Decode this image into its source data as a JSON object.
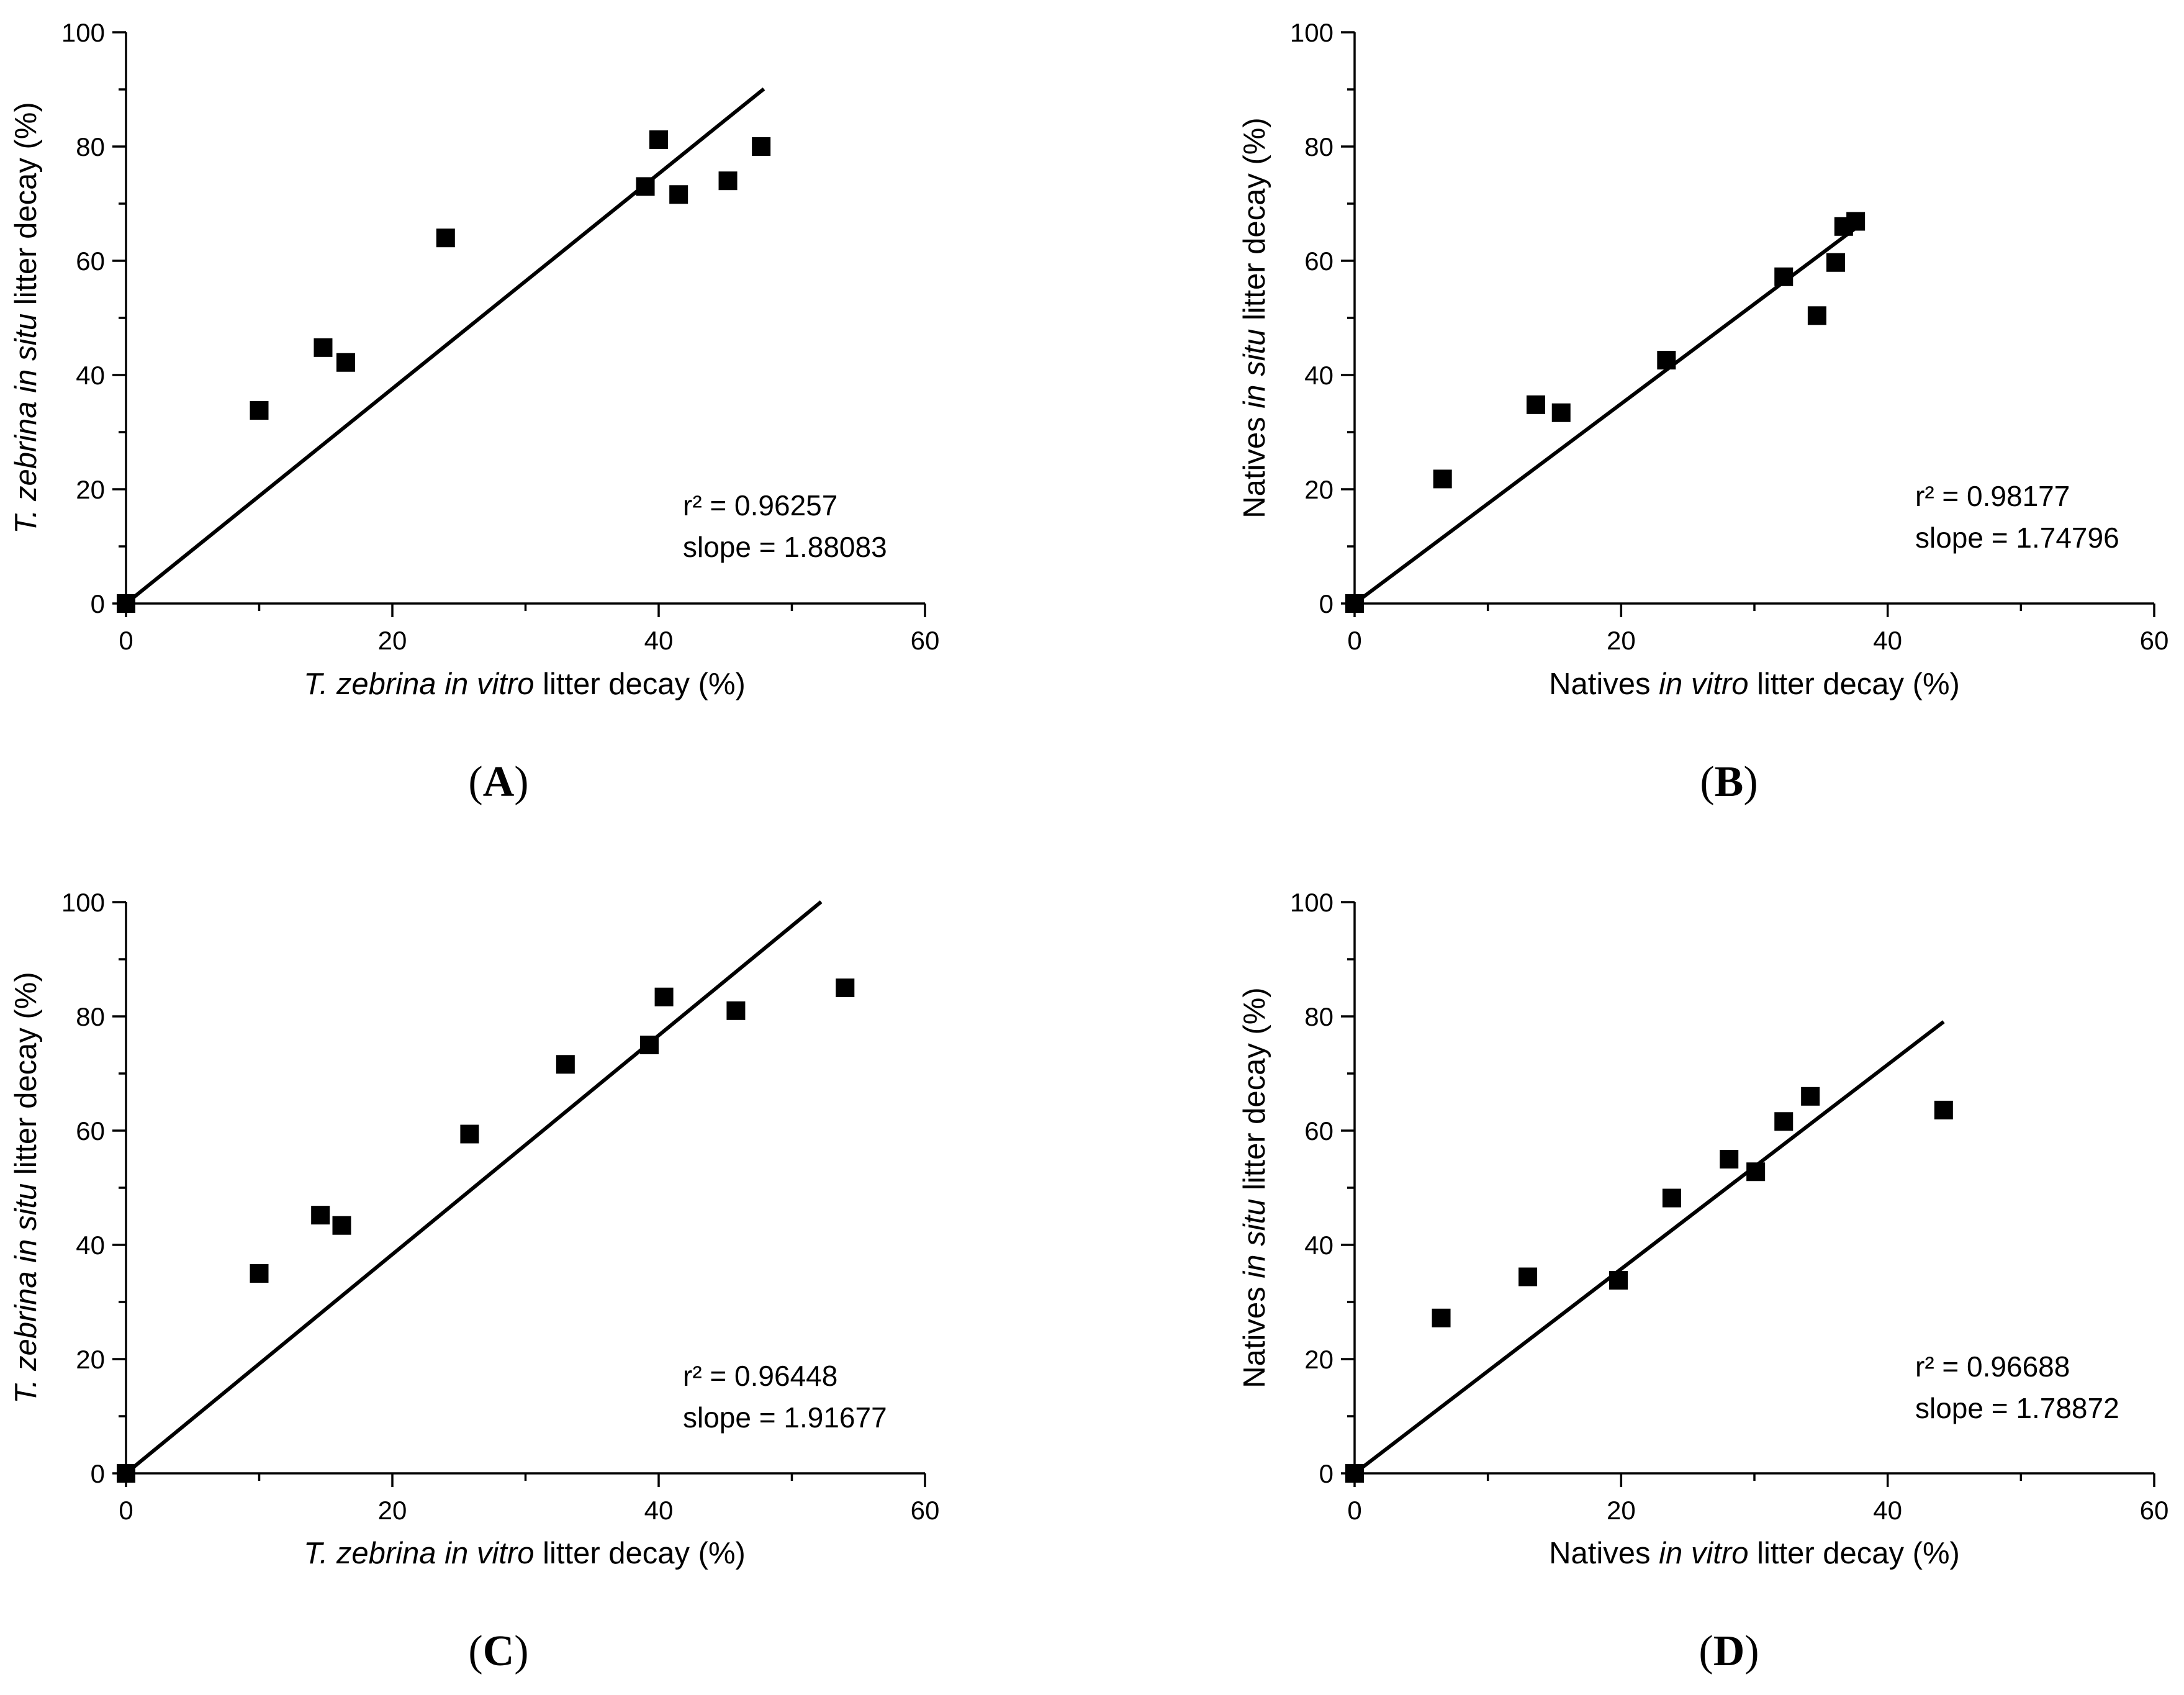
{
  "chart_data": [
    {
      "type": "scatter",
      "panel_label": "A",
      "xlabel": {
        "italic_lead": "T. zebrina in vitro",
        "rest": " litter decay (%)"
      },
      "ylabel": {
        "italic_lead": "T. zebrina in situ",
        "rest": " litter decay (%)"
      },
      "xlim": [
        0,
        60
      ],
      "ylim": [
        0,
        100
      ],
      "xticks": [
        0,
        20,
        40,
        60
      ],
      "yticks": [
        0,
        20,
        40,
        60,
        80,
        100
      ],
      "points": [
        [
          0,
          0
        ],
        [
          10,
          33.8
        ],
        [
          14.8,
          44.8
        ],
        [
          16.5,
          42.2
        ],
        [
          24,
          64
        ],
        [
          39,
          73
        ],
        [
          40,
          81.2
        ],
        [
          41.5,
          71.6
        ],
        [
          45.2,
          74
        ],
        [
          47.7,
          80
        ]
      ],
      "fit": {
        "x0": 0,
        "x1": 47.9,
        "slope": 1.88083
      },
      "annotation": {
        "r2": "r² = 0.96257",
        "slope": "slope = 1.88083"
      }
    },
    {
      "type": "scatter",
      "panel_label": "B",
      "xlabel": {
        "plain_lead": "Natives ",
        "italic": "in vitro",
        "rest": " litter decay (%)"
      },
      "ylabel": {
        "plain_lead": "Natives ",
        "italic": "in situ",
        "rest": " litter decay (%)"
      },
      "xlim": [
        0,
        60
      ],
      "ylim": [
        0,
        100
      ],
      "xticks": [
        0,
        20,
        40,
        60
      ],
      "yticks": [
        0,
        20,
        40,
        60,
        80,
        100
      ],
      "points": [
        [
          0,
          0
        ],
        [
          6.6,
          21.8
        ],
        [
          13.6,
          34.8
        ],
        [
          15.5,
          33.4
        ],
        [
          23.4,
          42.6
        ],
        [
          32.2,
          57.2
        ],
        [
          34.7,
          50.4
        ],
        [
          36.1,
          59.7
        ],
        [
          36.7,
          66
        ],
        [
          37.6,
          66.9
        ]
      ],
      "fit": {
        "x0": 0,
        "x1": 37.8,
        "slope": 1.74796
      },
      "annotation": {
        "r2": "r² = 0.98177",
        "slope": "slope = 1.74796"
      }
    },
    {
      "type": "scatter",
      "panel_label": "C",
      "xlabel": {
        "italic_lead": "T. zebrina in vitro",
        "rest": " litter decay (%)"
      },
      "ylabel": {
        "italic_lead": "T. zebrina in situ",
        "rest": " litter decay (%)"
      },
      "xlim": [
        0,
        60
      ],
      "ylim": [
        0,
        100
      ],
      "xticks": [
        0,
        20,
        40,
        60
      ],
      "yticks": [
        0,
        20,
        40,
        60,
        80,
        100
      ],
      "points": [
        [
          0,
          0
        ],
        [
          10,
          35
        ],
        [
          14.6,
          45.2
        ],
        [
          16.2,
          43.4
        ],
        [
          25.8,
          59.4
        ],
        [
          33,
          71.6
        ],
        [
          39.3,
          75
        ],
        [
          40.4,
          83.4
        ],
        [
          45.8,
          81
        ],
        [
          54,
          85
        ]
      ],
      "fit": {
        "x0": 0,
        "x1": 52.2,
        "slope": 1.91677
      },
      "annotation": {
        "r2": "r² = 0.96448",
        "slope": "slope = 1.91677"
      }
    },
    {
      "type": "scatter",
      "panel_label": "D",
      "xlabel": {
        "plain_lead": "Natives ",
        "italic": "in vitro",
        "rest": " litter decay (%)"
      },
      "ylabel": {
        "plain_lead": "Natives ",
        "italic": "in situ",
        "rest": " litter decay (%)"
      },
      "xlim": [
        0,
        60
      ],
      "ylim": [
        0,
        100
      ],
      "xticks": [
        0,
        20,
        40,
        60
      ],
      "yticks": [
        0,
        20,
        40,
        60,
        80,
        100
      ],
      "points": [
        [
          0,
          0
        ],
        [
          6.5,
          27.2
        ],
        [
          13,
          34.4
        ],
        [
          19.8,
          33.8
        ],
        [
          23.8,
          48.2
        ],
        [
          28.1,
          55
        ],
        [
          30.1,
          52.8
        ],
        [
          32.2,
          61.6
        ],
        [
          34.2,
          66
        ],
        [
          44.2,
          63.6
        ]
      ],
      "fit": {
        "x0": 0,
        "x1": 44.2,
        "slope": 1.78872
      },
      "annotation": {
        "r2": "r² = 0.96688",
        "slope": "slope = 1.78872"
      }
    }
  ]
}
